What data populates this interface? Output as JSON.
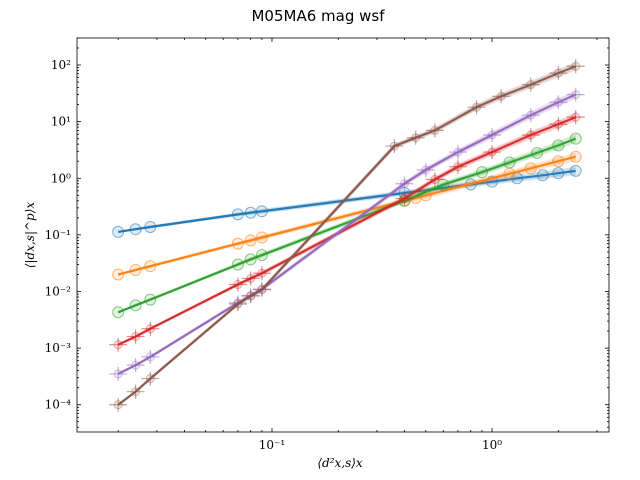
{
  "chart_data": {
    "type": "scatter",
    "title": "M05MA6 mag wsf",
    "xlabel": "⟨d²x,s⟩x",
    "ylabel": "⟨|dx,s|^p⟩x",
    "xscale": "log",
    "yscale": "log",
    "xlim": [
      0.013,
      3.4
    ],
    "ylim": [
      3.3e-05,
      300
    ],
    "x_ticks": [
      0.1,
      1
    ],
    "x_tick_labels": [
      "10⁻¹",
      "10⁰"
    ],
    "y_ticks": [
      0.0001,
      0.001,
      0.01,
      0.1,
      1,
      10,
      100
    ],
    "y_tick_labels": [
      "10⁻⁴",
      "10⁻³",
      "10⁻²",
      "10⁻¹",
      "10⁰",
      "10¹",
      "10²"
    ],
    "grid": false,
    "series": [
      {
        "color": "#1f77b4",
        "x": [
          0.02,
          0.024,
          0.028,
          0.07,
          0.08,
          0.09,
          0.4,
          0.8,
          1.0,
          1.3,
          1.7,
          2.0,
          2.4
        ],
        "y": [
          0.113,
          0.126,
          0.138,
          0.23,
          0.246,
          0.261,
          0.55,
          0.78,
          0.87,
          1.0,
          1.13,
          1.23,
          1.35
        ]
      },
      {
        "color": "#ff7f0e",
        "x": [
          0.02,
          0.024,
          0.028,
          0.07,
          0.08,
          0.09,
          0.4,
          0.45,
          0.5,
          1.2,
          1.5,
          2.0,
          2.4
        ],
        "y": [
          0.02,
          0.024,
          0.028,
          0.07,
          0.08,
          0.09,
          0.4,
          0.45,
          0.5,
          1.2,
          1.5,
          2.0,
          2.4
        ]
      },
      {
        "color": "#2ca02c",
        "x": [
          0.02,
          0.024,
          0.028,
          0.07,
          0.08,
          0.09,
          0.4,
          0.6,
          0.9,
          1.2,
          1.6,
          2.0,
          2.4
        ],
        "y": [
          0.0043,
          0.0057,
          0.0072,
          0.03,
          0.037,
          0.044,
          0.4,
          0.77,
          1.28,
          1.9,
          2.8,
          3.8,
          5.0
        ]
      },
      {
        "color": "#d62728",
        "x": [
          0.02,
          0.024,
          0.028,
          0.07,
          0.08,
          0.09,
          0.4,
          0.55,
          0.7,
          1.0,
          1.5,
          2.0,
          2.4
        ],
        "y": [
          0.00115,
          0.0016,
          0.0022,
          0.0133,
          0.017,
          0.021,
          0.44,
          0.95,
          1.6,
          2.9,
          5.8,
          9.0,
          12.0
        ]
      },
      {
        "color": "#9467bd",
        "x": [
          0.02,
          0.024,
          0.028,
          0.07,
          0.08,
          0.09,
          0.4,
          0.5,
          0.7,
          1.0,
          1.5,
          2.0,
          2.4
        ],
        "y": [
          0.00035,
          0.0005,
          0.0007,
          0.0063,
          0.0085,
          0.011,
          0.8,
          1.4,
          2.9,
          5.8,
          13.0,
          22.0,
          30.0
        ]
      },
      {
        "color": "#8c564b",
        "x": [
          0.02,
          0.024,
          0.028,
          0.07,
          0.08,
          0.09,
          0.36,
          0.45,
          0.55,
          0.85,
          1.1,
          1.5,
          2.0,
          2.4
        ],
        "y": [
          0.0001,
          0.00017,
          0.00029,
          0.006,
          0.0083,
          0.0108,
          3.7,
          5.2,
          7.0,
          18.0,
          28.0,
          45.0,
          72.0,
          95.0
        ]
      }
    ]
  }
}
